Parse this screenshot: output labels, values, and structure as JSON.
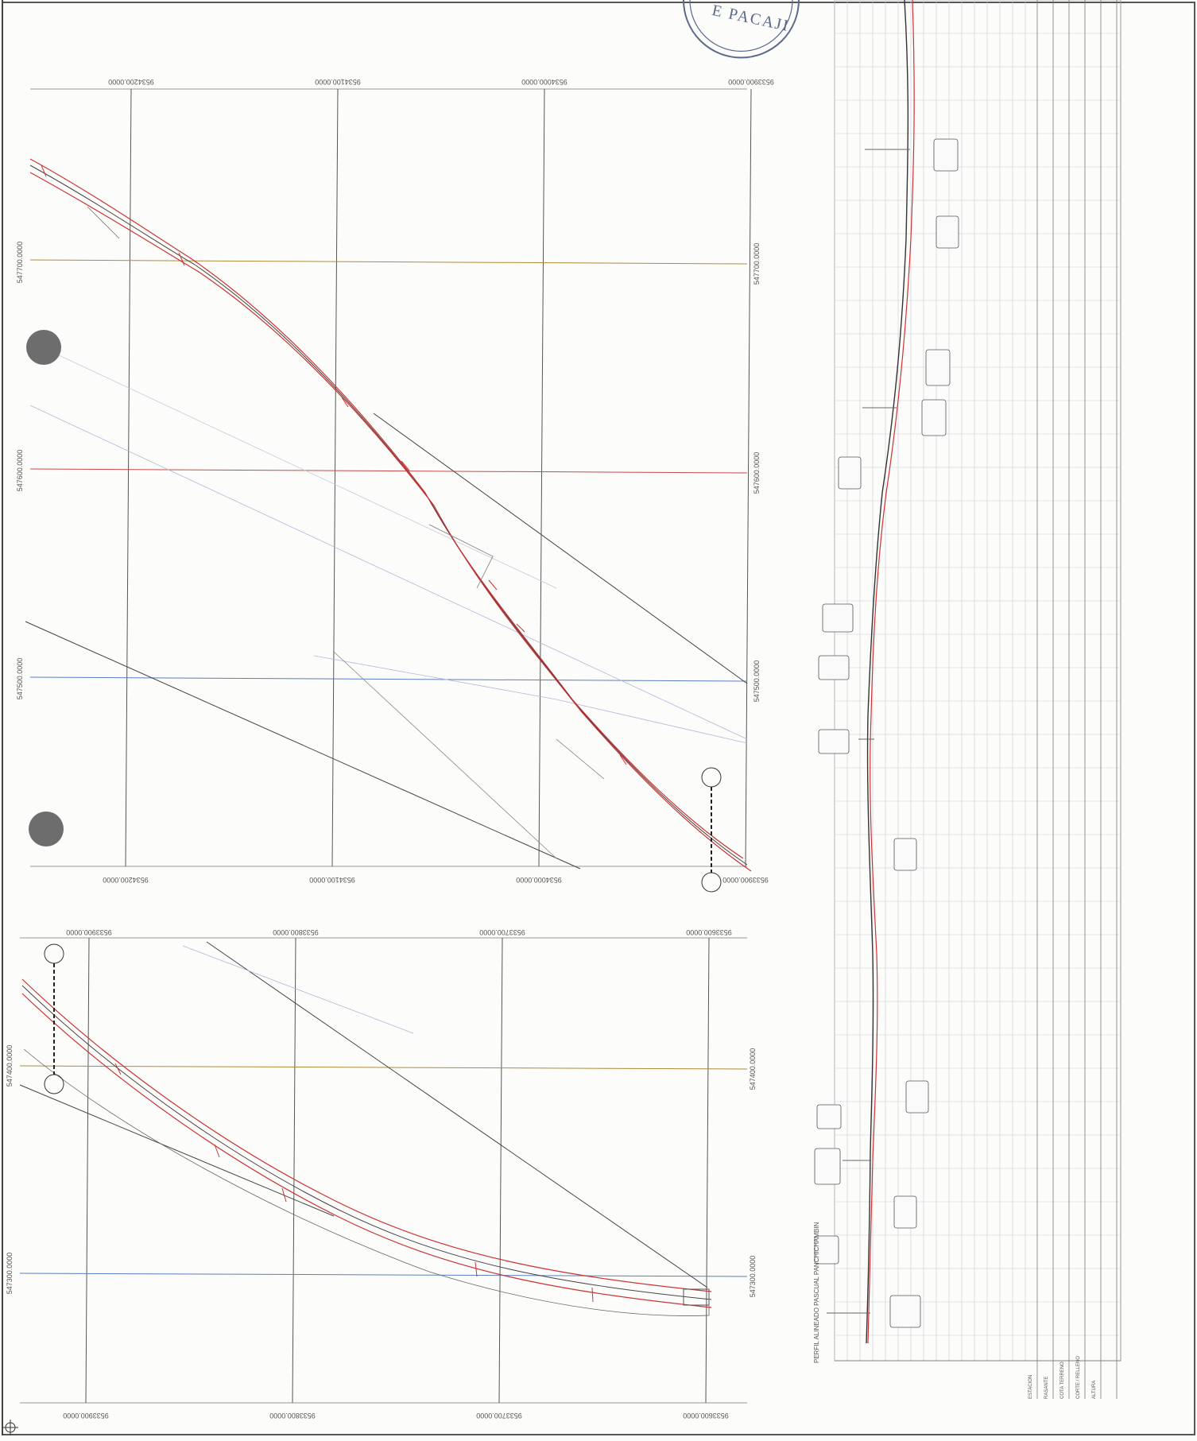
{
  "seal": {
    "text": "E PACAJI"
  },
  "sheet_a": {
    "top_ticks": [
      "9534200.0000",
      "9534100.0000",
      "9534000.0000",
      "9533900.0000"
    ],
    "bottom_ticks": [
      "9534200.0000",
      "9534100.0000",
      "9534000.0000",
      "9533900.0000"
    ],
    "left_ticks": [
      "547700.0000",
      "547600.0000",
      "547500.0000"
    ],
    "right_ticks": [
      "547700.0000",
      "547600.0000",
      "547500.0000"
    ]
  },
  "sheet_b": {
    "top_ticks": [
      "9533900.0000",
      "9533800.0000",
      "9533700.0000",
      "9533600.0000"
    ],
    "bottom_ticks": [
      "9533900.0000",
      "9533800.0000",
      "9533700.0000",
      "9533600.0000"
    ],
    "left_ticks": [
      "547400.0000",
      "547300.0000"
    ],
    "right_ticks": [
      "547400.0000",
      "547300.0000"
    ]
  },
  "profile": {
    "title": "PERFIL ALINEADO PASCUAL PANCHICHAMBIN",
    "row_headers": [
      "ESTACION",
      "RASANTE",
      "COTA TERRENO",
      "CORTE / RELLENO",
      "ALTURA"
    ]
  },
  "colors": {
    "alignment": "#cc3333",
    "grid": "#b9b9c9",
    "axis_red": "#d24a4a",
    "axis_blue": "#4a6fb5",
    "ink": "#444444"
  }
}
